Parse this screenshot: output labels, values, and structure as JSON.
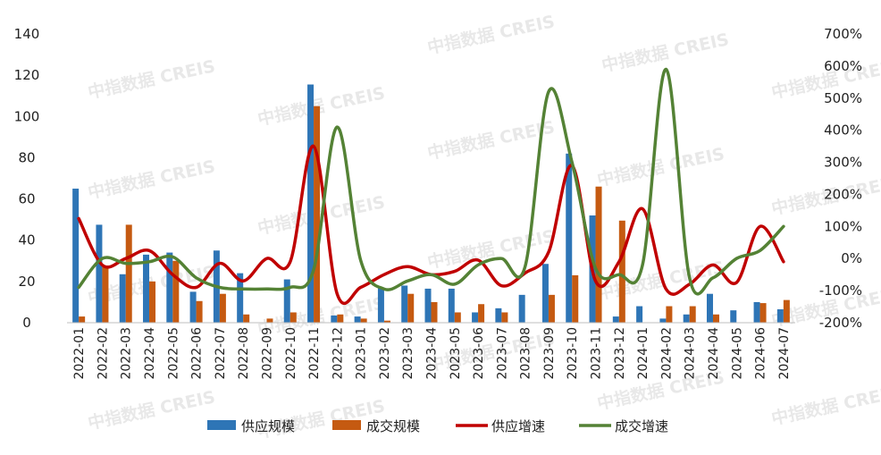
{
  "chart_data": {
    "type": "bar",
    "categories": [
      "2022-01",
      "2022-02",
      "2022-03",
      "2022-04",
      "2022-05",
      "2022-06",
      "2022-07",
      "2022-08",
      "2022-09",
      "2022-10",
      "2022-11",
      "2022-12",
      "2023-01",
      "2023-02",
      "2023-03",
      "2023-04",
      "2023-05",
      "2023-06",
      "2023-07",
      "2023-08",
      "2023-09",
      "2023-10",
      "2023-11",
      "2023-12",
      "2024-01",
      "2024-02",
      "2024-03",
      "2024-04",
      "2024-05",
      "2024-06",
      "2024-07"
    ],
    "series": [
      {
        "name": "供应规模",
        "kind": "bar",
        "axis": "left",
        "color": "#2e75b6",
        "values": [
          65,
          47.5,
          23.5,
          33,
          34,
          15,
          35,
          24,
          0,
          21,
          115.5,
          3.5,
          3,
          17,
          18,
          16.5,
          16.5,
          5,
          7,
          13.5,
          28.5,
          82,
          52,
          3,
          8,
          2,
          4,
          14,
          6,
          10,
          6.5
        ]
      },
      {
        "name": "成交规模",
        "kind": "bar",
        "axis": "left",
        "color": "#c55a11",
        "values": [
          3,
          27,
          47.5,
          20,
          30,
          10.5,
          14,
          4,
          2,
          5,
          105,
          4,
          2,
          1,
          14,
          10,
          5,
          9,
          5,
          0,
          13.5,
          23,
          66,
          49.5,
          0,
          8,
          8,
          4,
          0,
          9.5,
          11
        ]
      },
      {
        "name": "供应增速",
        "kind": "line",
        "axis": "right",
        "color": "#c00000",
        "values": [
          125,
          -20,
          0,
          25,
          -50,
          -90,
          -15,
          -70,
          0,
          -10,
          350,
          -110,
          -90,
          -50,
          -25,
          -50,
          -40,
          -5,
          -85,
          -45,
          20,
          290,
          -70,
          -10,
          155,
          -95,
          -80,
          -20,
          -75,
          100,
          -10
        ]
      },
      {
        "name": "成交增速",
        "kind": "line",
        "axis": "right",
        "color": "#548235",
        "values": [
          -90,
          0,
          -15,
          -10,
          5,
          -60,
          -90,
          -95,
          -95,
          -90,
          -35,
          410,
          -5,
          -95,
          -70,
          -50,
          -80,
          -20,
          0,
          -25,
          520,
          300,
          -30,
          -50,
          -20,
          590,
          -60,
          -60,
          0,
          25,
          100
        ]
      }
    ],
    "left_axis": {
      "min": 0,
      "max": 140,
      "ticks": [
        "0",
        "20",
        "40",
        "60",
        "80",
        "100",
        "120",
        "140"
      ]
    },
    "right_axis": {
      "min": -200,
      "max": 700,
      "ticks": [
        "-200%",
        "-100%",
        "0%",
        "100%",
        "200%",
        "300%",
        "400%",
        "500%",
        "600%",
        "700%"
      ]
    },
    "legend": {
      "placement": "bottom"
    },
    "grid": false,
    "watermark": "中指数据 CREIS"
  }
}
